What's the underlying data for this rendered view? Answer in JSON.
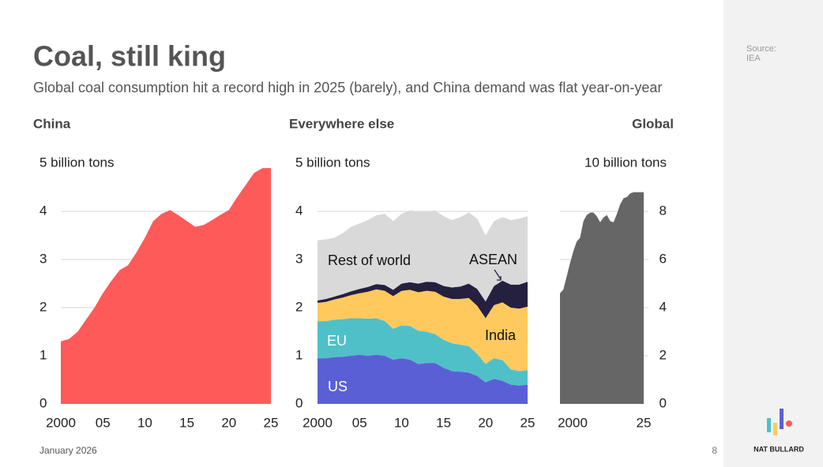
{
  "title": "Coal, still king",
  "subtitle": "Global coal consumption hit a record high in 2025 (barely), and China demand was flat year-on-year",
  "source_label": "Source:",
  "source": "IEA",
  "date": "January 2026",
  "page": "8",
  "brand": "NAT BULLARD",
  "chart_data": [
    {
      "type": "area",
      "title": "China",
      "x": [
        2000,
        2001,
        2002,
        2003,
        2004,
        2005,
        2006,
        2007,
        2008,
        2009,
        2010,
        2011,
        2012,
        2013,
        2014,
        2015,
        2016,
        2017,
        2018,
        2019,
        2020,
        2021,
        2022,
        2023,
        2024,
        2025
      ],
      "values": [
        1.3,
        1.35,
        1.5,
        1.75,
        2.0,
        2.3,
        2.55,
        2.78,
        2.88,
        3.15,
        3.45,
        3.8,
        3.95,
        4.03,
        3.92,
        3.8,
        3.68,
        3.72,
        3.82,
        3.93,
        4.03,
        4.3,
        4.55,
        4.8,
        4.9,
        4.9
      ],
      "color": "#fe5a5a",
      "xlim": [
        2000,
        2025
      ],
      "xticks": [
        2000,
        {
          "value": 2005,
          "label": "05"
        },
        {
          "value": 2010,
          "label": "10"
        },
        {
          "value": 2015,
          "label": "15"
        },
        {
          "value": 2020,
          "label": "20"
        },
        {
          "value": 2025,
          "label": "25"
        }
      ],
      "ylim": [
        0,
        5
      ],
      "yticks": [
        0,
        1,
        2,
        3,
        4,
        {
          "value": 5,
          "label": "5 billion tons"
        }
      ],
      "grid": true,
      "y_axis_side": "left"
    },
    {
      "type": "stacked_area",
      "title": "Everywhere else",
      "x": [
        2000,
        2001,
        2002,
        2003,
        2004,
        2005,
        2006,
        2007,
        2008,
        2009,
        2010,
        2011,
        2012,
        2013,
        2014,
        2015,
        2016,
        2017,
        2018,
        2019,
        2020,
        2021,
        2022,
        2023,
        2024,
        2025
      ],
      "series": [
        {
          "name": "US",
          "color": "#5b5fd6",
          "values": [
            0.95,
            0.95,
            0.97,
            0.98,
            1.0,
            1.02,
            1.0,
            1.02,
            1.0,
            0.92,
            0.95,
            0.92,
            0.83,
            0.85,
            0.85,
            0.75,
            0.68,
            0.67,
            0.65,
            0.58,
            0.45,
            0.52,
            0.48,
            0.4,
            0.38,
            0.4
          ]
        },
        {
          "name": "EU",
          "color": "#4fc0c8",
          "values": [
            0.77,
            0.77,
            0.78,
            0.78,
            0.78,
            0.76,
            0.77,
            0.76,
            0.72,
            0.64,
            0.68,
            0.7,
            0.69,
            0.65,
            0.6,
            0.58,
            0.58,
            0.56,
            0.55,
            0.46,
            0.38,
            0.43,
            0.43,
            0.32,
            0.3,
            0.3
          ]
        },
        {
          "name": "India",
          "color": "#ffc95e",
          "values": [
            0.38,
            0.4,
            0.42,
            0.45,
            0.48,
            0.52,
            0.56,
            0.6,
            0.63,
            0.68,
            0.72,
            0.75,
            0.8,
            0.85,
            0.88,
            0.9,
            0.92,
            0.95,
            1.0,
            1.0,
            0.95,
            1.1,
            1.2,
            1.28,
            1.3,
            1.32
          ]
        },
        {
          "name": "ASEAN",
          "color": "#25203f",
          "values": [
            0.05,
            0.06,
            0.06,
            0.07,
            0.08,
            0.09,
            0.1,
            0.11,
            0.12,
            0.13,
            0.15,
            0.16,
            0.18,
            0.19,
            0.2,
            0.22,
            0.24,
            0.26,
            0.3,
            0.35,
            0.35,
            0.4,
            0.45,
            0.48,
            0.5,
            0.52
          ]
        },
        {
          "name": "Rest of world",
          "color": "#d9d9d9",
          "values": [
            1.25,
            1.24,
            1.22,
            1.27,
            1.34,
            1.36,
            1.39,
            1.43,
            1.48,
            1.43,
            1.45,
            1.49,
            1.5,
            1.46,
            1.49,
            1.45,
            1.4,
            1.44,
            1.48,
            1.46,
            1.37,
            1.35,
            1.32,
            1.34,
            1.37,
            1.36
          ]
        }
      ],
      "xlim": [
        2000,
        2025
      ],
      "xticks": [
        2000,
        {
          "value": 2005,
          "label": "05"
        },
        {
          "value": 2010,
          "label": "10"
        },
        {
          "value": 2015,
          "label": "15"
        },
        {
          "value": 2020,
          "label": "20"
        },
        {
          "value": 2025,
          "label": "25"
        }
      ],
      "ylim": [
        0,
        5
      ],
      "yticks": [
        0,
        1,
        2,
        3,
        4,
        {
          "value": 5,
          "label": "5 billion tons"
        }
      ],
      "grid": true,
      "y_axis_side": "left"
    },
    {
      "type": "area",
      "title": "Global",
      "x": [
        2000,
        2001,
        2002,
        2003,
        2004,
        2005,
        2006,
        2007,
        2008,
        2009,
        2010,
        2011,
        2012,
        2013,
        2014,
        2015,
        2016,
        2017,
        2018,
        2019,
        2020,
        2021,
        2022,
        2023,
        2024,
        2025
      ],
      "values": [
        4.6,
        4.75,
        5.3,
        5.85,
        6.35,
        6.75,
        6.9,
        7.6,
        7.85,
        7.95,
        7.95,
        7.8,
        7.55,
        7.75,
        7.85,
        7.6,
        7.55,
        7.9,
        8.3,
        8.55,
        8.6,
        8.75,
        8.8,
        8.8,
        8.8,
        8.8
      ],
      "color": "#666666",
      "xlim": [
        2000,
        2025
      ],
      "xticks": [
        2000,
        {
          "value": 2025,
          "label": "25"
        }
      ],
      "ylim": [
        0,
        10
      ],
      "yticks": [
        0,
        2,
        4,
        6,
        8,
        {
          "value": 10,
          "label": "10 billion tons"
        }
      ],
      "grid": true,
      "y_axis_side": "right"
    }
  ]
}
